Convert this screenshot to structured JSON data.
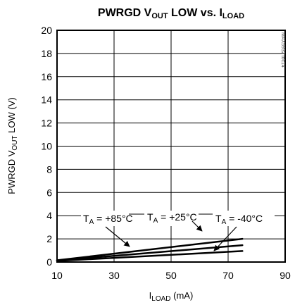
{
  "chart_data": {
    "type": "line",
    "title": {
      "main": "PWRGD V",
      "sub1": "OUT",
      "mid": " LOW vs. I",
      "sub2": "LOAD"
    },
    "xlabel": {
      "pre": "I",
      "sub": "LOAD",
      "post": " (mA)"
    },
    "ylabel": {
      "pre": "PWRGD V",
      "sub": "OUT",
      "post": " LOW (V)"
    },
    "chart_id": "MAX5932 toc14",
    "xlim": [
      10,
      90
    ],
    "ylim": [
      0,
      20
    ],
    "x_ticks": [
      "10",
      "30",
      "50",
      "70",
      "90"
    ],
    "y_ticks": [
      "0",
      "2",
      "4",
      "6",
      "8",
      "10",
      "12",
      "14",
      "16",
      "18",
      "20"
    ],
    "grid": true,
    "series": [
      {
        "name": "+85°C",
        "x": [
          10,
          75
        ],
        "y": [
          0.15,
          2.0
        ]
      },
      {
        "name": "+25°C",
        "x": [
          10,
          75
        ],
        "y": [
          0.12,
          1.45
        ]
      },
      {
        "name": "-40°C",
        "x": [
          10,
          75
        ],
        "y": [
          0.1,
          0.95
        ]
      }
    ],
    "annotations": [
      {
        "pre": "T",
        "sub": "A",
        "post": " = +85°C"
      },
      {
        "pre": "T",
        "sub": "A",
        "post": " = +25°C"
      },
      {
        "pre": "T",
        "sub": "A",
        "post": " = -40°C"
      }
    ],
    "colors": {
      "line": "#000000",
      "grid": "#000000",
      "background": "#ffffff"
    }
  }
}
